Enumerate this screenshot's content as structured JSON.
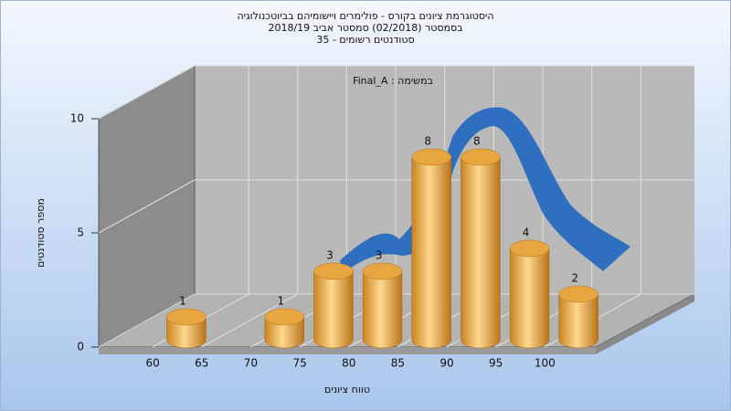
{
  "chart_data": {
    "type": "histogram",
    "title": "היסטוגרמת ציונים בקורס - פולימרים ויישומיהם בביוטכנולוגיה",
    "subtitle": "בסמסטר  (02/2018)  סמסטר אביב 2018/19",
    "subtitle2": "סטודנטים רשומים - 35",
    "annotation": "Final_A : במשימה",
    "x_label": "טווח ציונים",
    "y_label": "מספר סטודנטים",
    "bins": [
      60,
      65,
      70,
      75,
      80,
      85,
      90,
      95,
      100,
      105
    ],
    "counts": [
      1,
      0,
      1,
      3,
      3,
      8,
      8,
      4,
      2
    ],
    "color": "#e8a640",
    "xlim": [
      55,
      105
    ],
    "xticks": [
      60,
      65,
      70,
      75,
      80,
      85,
      90,
      95,
      100
    ],
    "ylim": [
      0,
      10
    ],
    "yticks": [
      0,
      5,
      10
    ],
    "grid": true
  }
}
